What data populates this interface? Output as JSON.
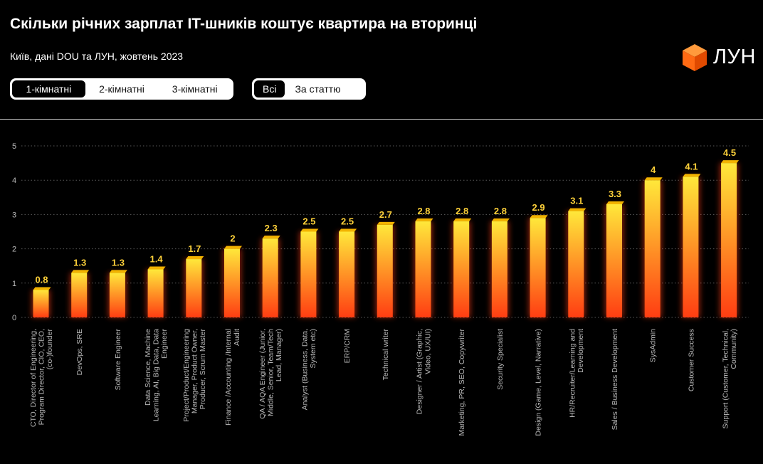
{
  "header": {
    "title": "Скільки річних зарплат IT-шників коштує квартира на вторинці",
    "subtitle": "Київ, дані DOU та ЛУН, жовтень 2023",
    "logo_text": "ЛУН"
  },
  "tabs": {
    "rooms": [
      {
        "label": "1-кімнатні",
        "active": true
      },
      {
        "label": "2-кімнатні",
        "active": false
      },
      {
        "label": "3-кімнатні",
        "active": false
      }
    ],
    "filter": [
      {
        "label": "Всі",
        "active": true
      },
      {
        "label": "За статтю",
        "active": false
      }
    ]
  },
  "colors": {
    "bar_top": "#ffe83a",
    "bar_bottom": "#ff3d12",
    "bar_cap": "#f2b300",
    "label": "#ffd23a",
    "grid": "#5a5a5a",
    "axis_text": "#b8b8b8",
    "logo_accent": "#ff6a13"
  },
  "chart_data": {
    "type": "bar",
    "title": "Скільки річних зарплат IT-шників коштує квартира на вторинці",
    "subtitle": "Київ, дані DOU та ЛУН, жовтень 2023",
    "xlabel": "",
    "ylabel": "",
    "ylim": [
      0,
      5
    ],
    "yticks": [
      0,
      1,
      2,
      3,
      4,
      5
    ],
    "grid": true,
    "categories": [
      "CTO, Director of Engineering, Program Director, CIO, CEO, (co-)founder",
      "DevOps, SRE",
      "Software Engineer",
      "Data Science, Machine Learning, AI, Big Data, Data Engineer",
      "Project/Product/Engineering Manager, Product Owner, Producer, Scrum Master",
      "Finance /Accounting /Internal Audit",
      "QA / AQA Engineer (Junior, Middle, Senior, Team/Tech Lead, Manager)",
      "Analyst (Business, Data, System etc)",
      "ERP/CRM",
      "Technical writer",
      "Designer / Artist (Graphic, Video, UX/UI)",
      "Marketing, PR, SEO, Copywriter",
      "Security Specialist",
      "Design (Game, Level, Narrative)",
      "HR/Recruiter/Learning and Development",
      "Sales / Business Development",
      "SysAdmin",
      "Customer Success",
      "Support (Customer, Technical, Community)"
    ],
    "category_lines": [
      [
        "CTO, Director of Engineering,",
        "Program Director, CIO, CEO,",
        "(co-)founder"
      ],
      [
        "DevOps, SRE"
      ],
      [
        "Software Engineer"
      ],
      [
        "Data Science, Machine",
        "Learning, AI, Big Data, Data",
        "Engineer"
      ],
      [
        "Project/Product/Engineering",
        "Manager, Product Owner,",
        "Producer, Scrum Master"
      ],
      [
        "Finance /Accounting /Internal",
        "Audit"
      ],
      [
        "QA / AQA Engineer (Junior,",
        "Middle, Senior, Team/Tech",
        "Lead, Manager)"
      ],
      [
        "Analyst (Business, Data,",
        "System etc)"
      ],
      [
        "ERP/CRM"
      ],
      [
        "Technical writer"
      ],
      [
        "Designer / Artist (Graphic,",
        "Video, UX/UI)"
      ],
      [
        "Marketing, PR, SEO, Copywriter"
      ],
      [
        "Security Specialist"
      ],
      [
        "Design (Game, Level, Narrative)"
      ],
      [
        "HR/Recruiter/Learning and",
        "Development"
      ],
      [
        "Sales / Business Development"
      ],
      [
        "SysAdmin"
      ],
      [
        "Customer Success"
      ],
      [
        "Support (Customer, Technical,",
        "Community)"
      ]
    ],
    "values": [
      0.8,
      1.3,
      1.3,
      1.4,
      1.7,
      2,
      2.3,
      2.5,
      2.5,
      2.7,
      2.8,
      2.8,
      2.8,
      2.9,
      3.1,
      3.3,
      4,
      4.1,
      4.5
    ],
    "value_labels": [
      "0.8",
      "1.3",
      "1.3",
      "1.4",
      "1.7",
      "2",
      "2.3",
      "2.5",
      "2.5",
      "2.7",
      "2.8",
      "2.8",
      "2.8",
      "2.9",
      "3.1",
      "3.3",
      "4",
      "4.1",
      "4.5"
    ]
  }
}
